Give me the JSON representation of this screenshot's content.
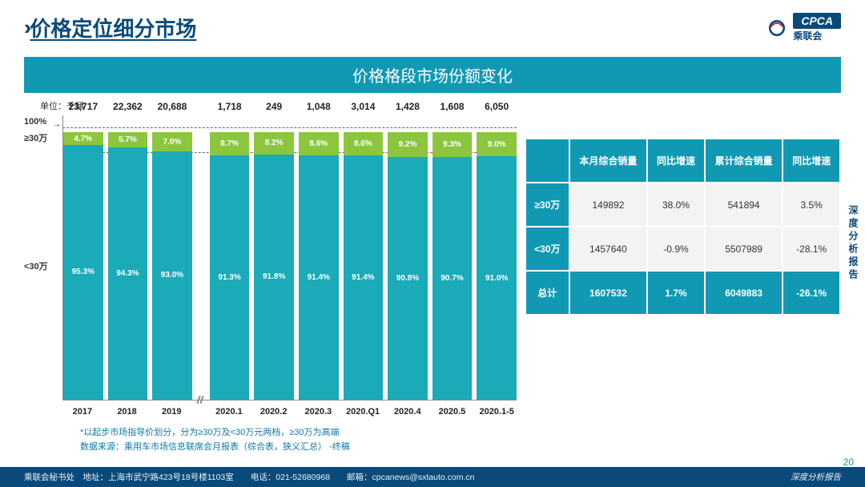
{
  "page_title": "价格定位细分市场",
  "banner": "价格格段市场份额变化",
  "logo": {
    "badge": "CPCA",
    "sub": "乘联会"
  },
  "unit_label": "单位：千辆",
  "side_text": "深度分析报告",
  "page_number": "20",
  "axis": {
    "y100": "100%",
    "gte_label": "≥30万",
    "lt_label": "<30万"
  },
  "chart": {
    "type": "stacked-bar-100",
    "bar_lower_color": "#1aaab8",
    "bar_upper_color": "#8cc63f",
    "background_color": "#ffffff",
    "bar_total_height_pct": 94,
    "break_after_index": 2,
    "dash1_top_pct": 4,
    "dash2_top_pct": 12,
    "categories": [
      "2017",
      "2018",
      "2019",
      "2020.1",
      "2020.2",
      "2020.3",
      "2020.Q1",
      "2020.4",
      "2020.5",
      "2020.1-5"
    ],
    "totals": [
      "23,717",
      "22,362",
      "20,688",
      "1,718",
      "249",
      "1,048",
      "3,014",
      "1,428",
      "1,608",
      "6,050"
    ],
    "upper_pct": [
      4.7,
      5.7,
      7.0,
      8.7,
      8.2,
      8.6,
      8.6,
      9.2,
      9.3,
      9.0
    ],
    "lower_pct": [
      95.3,
      94.3,
      93.0,
      91.3,
      91.8,
      91.4,
      91.4,
      90.8,
      90.7,
      91.0
    ]
  },
  "notes": {
    "line1": "*以起步市场指导价划分，分为≥30万及<30万元两档，≥30万为高端",
    "line2": "数据来源：乘用车市场信息联席会月报表（综合表，狭义汇总）  -终稿"
  },
  "table": {
    "headers": [
      "",
      "本月综合销量",
      "同比增速",
      "累计综合销量",
      "同比增速"
    ],
    "rows": [
      {
        "label": "≥30万",
        "cells": [
          "149892",
          "38.0%",
          "541894",
          "3.5%"
        ]
      },
      {
        "label": "<30万",
        "cells": [
          "1457640",
          "-0.9%",
          "5507989",
          "-28.1%"
        ]
      }
    ],
    "total_row": {
      "label": "总计",
      "cells": [
        "1607532",
        "1.7%",
        "6049883",
        "-26.1%"
      ]
    }
  },
  "footer": {
    "left": "乘联会秘书处　地址：上海市武宁路423号18号楼1103室　　电话：021-52680968　　邮箱：cpcanews@sxtauto.com.cn",
    "right": "深度分析报告"
  },
  "watermark_text": "CPCA乘联会"
}
